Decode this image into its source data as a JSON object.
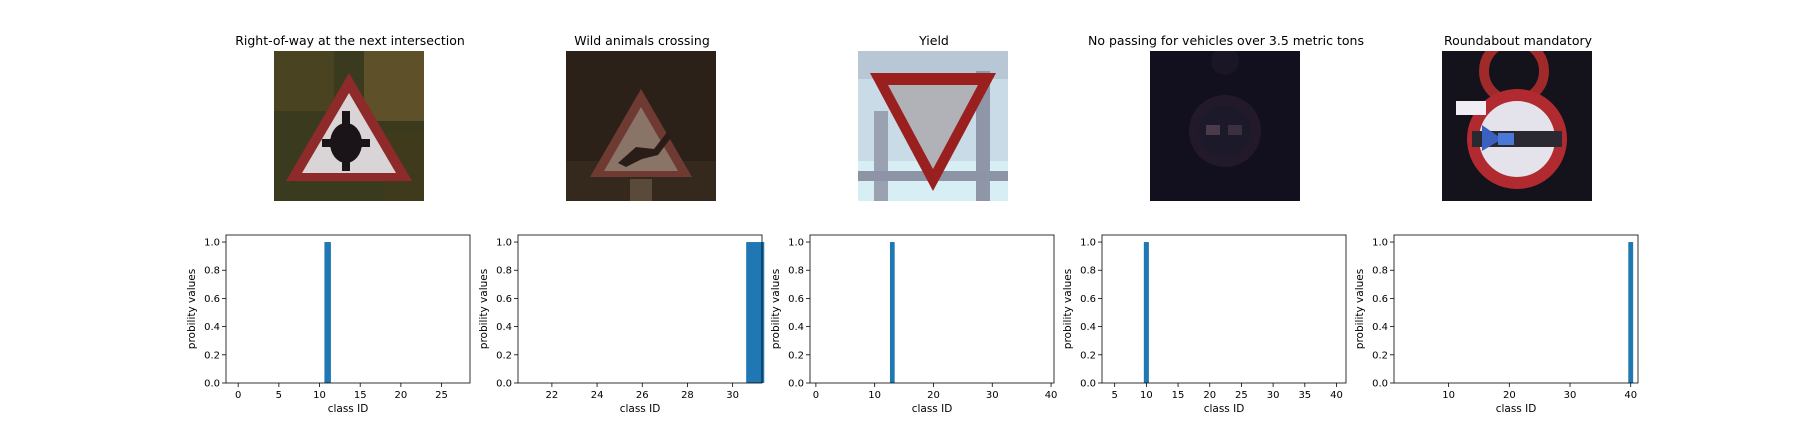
{
  "panels": [
    {
      "title": "Right-of-way at the next intersection",
      "icon": "right-of-way-sign-icon"
    },
    {
      "title": "Wild animals crossing",
      "icon": "wild-animals-sign-icon"
    },
    {
      "title": "Yield",
      "icon": "yield-sign-icon"
    },
    {
      "title": "No passing for vehicles over 3.5 metric tons",
      "icon": "no-passing-heavy-sign-icon"
    },
    {
      "title": "Roundabout mandatory",
      "icon": "roundabout-sign-icon"
    }
  ],
  "chart_data": [
    {
      "type": "bar",
      "xlabel": "class ID",
      "ylabel": "probility values",
      "x": [
        11
      ],
      "values": [
        1.0
      ],
      "xlim": [
        -1.5,
        28.5
      ],
      "ylim": [
        0,
        1.05
      ],
      "xticks": [
        "0",
        "5",
        "10",
        "15",
        "20",
        "25"
      ],
      "yticks": [
        "0.0",
        "0.2",
        "0.4",
        "0.6",
        "0.8",
        "1.0"
      ],
      "color": "#1f77b4"
    },
    {
      "type": "bar",
      "xlabel": "class ID",
      "ylabel": "probility values",
      "x": [
        31
      ],
      "values": [
        1.0
      ],
      "xlim": [
        20.5,
        31.3
      ],
      "ylim": [
        0,
        1.05
      ],
      "xticks": [
        "22",
        "24",
        "26",
        "28",
        "30"
      ],
      "yticks": [
        "0.0",
        "0.2",
        "0.4",
        "0.6",
        "0.8",
        "1.0"
      ],
      "color": "#1f77b4"
    },
    {
      "type": "bar",
      "xlabel": "class ID",
      "ylabel": "probility values",
      "x": [
        13
      ],
      "values": [
        1.0
      ],
      "xlim": [
        -1,
        40.5
      ],
      "ylim": [
        0,
        1.05
      ],
      "xticks": [
        "0",
        "10",
        "20",
        "30",
        "40"
      ],
      "yticks": [
        "0.0",
        "0.2",
        "0.4",
        "0.6",
        "0.8",
        "1.0"
      ],
      "color": "#1f77b4"
    },
    {
      "type": "bar",
      "xlabel": "class ID",
      "ylabel": "probility values",
      "x": [
        10
      ],
      "values": [
        1.0
      ],
      "xlim": [
        3,
        41.5
      ],
      "ylim": [
        0,
        1.05
      ],
      "xticks": [
        "5",
        "10",
        "15",
        "20",
        "25",
        "30",
        "35",
        "40"
      ],
      "yticks": [
        "0.0",
        "0.2",
        "0.4",
        "0.6",
        "0.8",
        "1.0"
      ],
      "color": "#1f77b4"
    },
    {
      "type": "bar",
      "xlabel": "class ID",
      "ylabel": "probility values",
      "x": [
        40
      ],
      "values": [
        1.0
      ],
      "xlim": [
        1,
        41.2
      ],
      "ylim": [
        0,
        1.05
      ],
      "xticks": [
        "10",
        "20",
        "30",
        "40"
      ],
      "yticks": [
        "0.0",
        "0.2",
        "0.4",
        "0.6",
        "0.8",
        "1.0"
      ],
      "color": "#1f77b4"
    }
  ]
}
